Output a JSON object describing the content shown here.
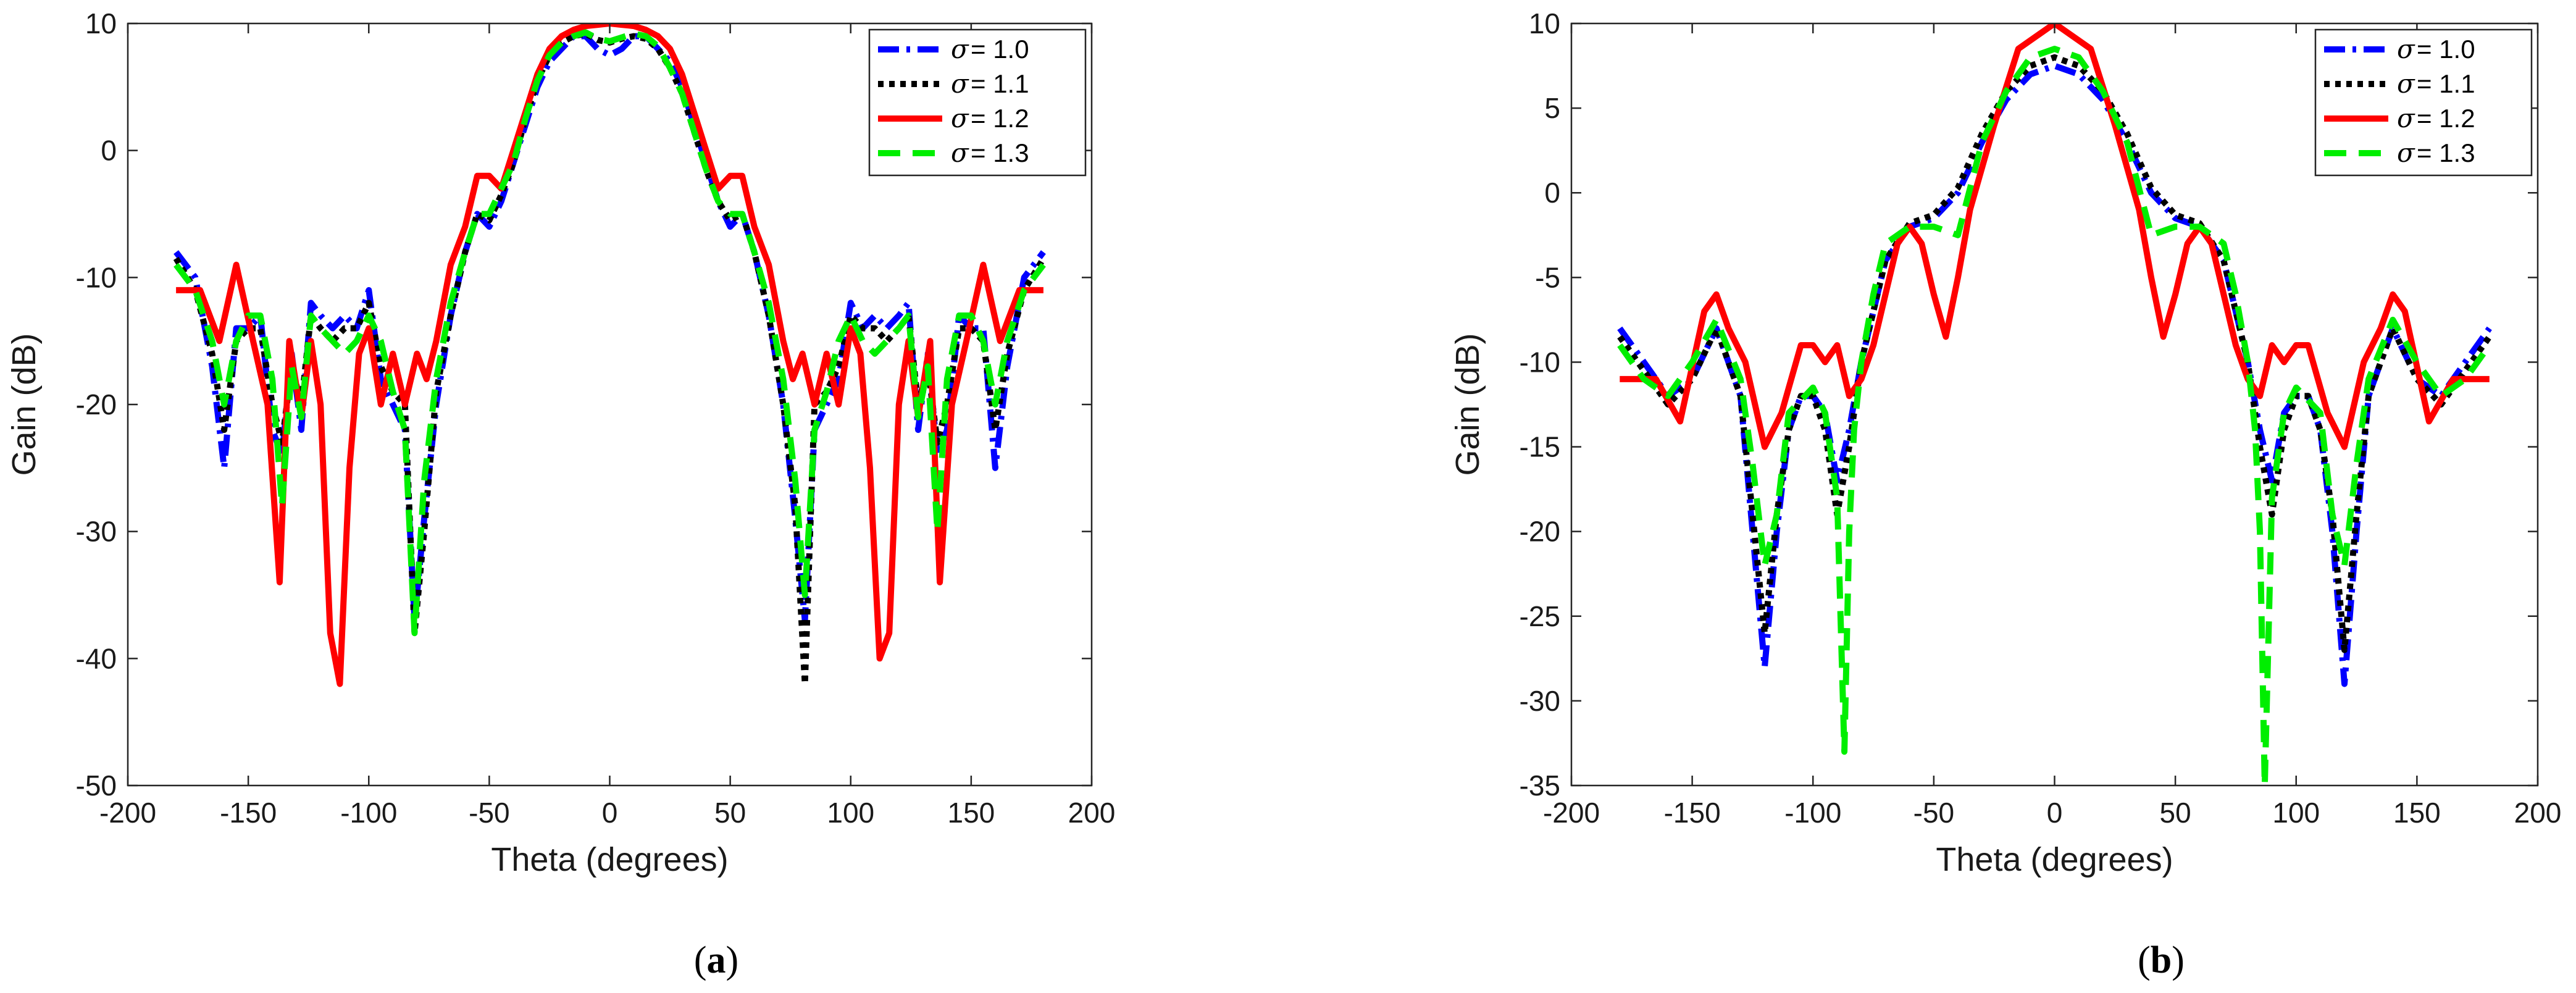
{
  "chart_data": [
    {
      "type": "line",
      "panel_label": "a",
      "xlabel": "Theta (degrees)",
      "ylabel": "Gain (dB)",
      "xlim": [
        -200,
        200
      ],
      "ylim": [
        -50,
        10
      ],
      "xticks": [
        -200,
        -150,
        -100,
        -50,
        0,
        50,
        100,
        150,
        200
      ],
      "yticks": [
        -50,
        -40,
        -30,
        -20,
        -10,
        0,
        10
      ],
      "grid": false,
      "legend_position": "top-right",
      "series": [
        {
          "name": "σ = 1.0",
          "legend_symbol": "σ",
          "legend_value": "= 1.0",
          "color": "#0000ff",
          "style": "dash-dot",
          "x": [
            -180,
            -172,
            -165,
            -160,
            -155,
            -150,
            -145,
            -140,
            -136,
            -132,
            -128,
            -124,
            -120,
            -115,
            -110,
            -105,
            -100,
            -95,
            -90,
            -85,
            -81,
            -77,
            -72,
            -66,
            -60,
            -55,
            -50,
            -45,
            -40,
            -35,
            -30,
            -25,
            -20,
            -15,
            -10,
            -5,
            0,
            5,
            10,
            15,
            20,
            25,
            30,
            35,
            40,
            45,
            50,
            55,
            60,
            66,
            72,
            77,
            81,
            85,
            90,
            95,
            100,
            105,
            110,
            115,
            120,
            124,
            128,
            132,
            136,
            140,
            145,
            150,
            155,
            160,
            165,
            172,
            180
          ],
          "y": [
            -8,
            -10,
            -17,
            -25,
            -14,
            -14,
            -13,
            -22,
            -24,
            -16,
            -22,
            -12,
            -13,
            -14,
            -13,
            -14,
            -11,
            -18,
            -20,
            -22,
            -37,
            -29,
            -20,
            -13,
            -8,
            -5,
            -6,
            -4,
            -1,
            2,
            5,
            7,
            8,
            9,
            9,
            8,
            7.5,
            8,
            9,
            9,
            8,
            7,
            5,
            2,
            -1,
            -4,
            -6,
            -5,
            -8,
            -13,
            -20,
            -29,
            -37,
            -22,
            -20,
            -18,
            -12,
            -14,
            -13,
            -14,
            -13,
            -12,
            -22,
            -16,
            -24,
            -22,
            -13,
            -14,
            -14,
            -25,
            -17,
            -10,
            -8
          ]
        },
        {
          "name": "σ = 1.1",
          "legend_symbol": "σ",
          "legend_value": "= 1.1",
          "color": "#000000",
          "style": "dotted",
          "x": [
            -180,
            -172,
            -165,
            -160,
            -155,
            -150,
            -145,
            -140,
            -136,
            -132,
            -128,
            -124,
            -120,
            -115,
            -110,
            -105,
            -100,
            -95,
            -90,
            -85,
            -81,
            -77,
            -72,
            -66,
            -60,
            -55,
            -50,
            -45,
            -40,
            -35,
            -30,
            -25,
            -20,
            -15,
            -10,
            -5,
            0,
            5,
            10,
            15,
            20,
            25,
            30,
            35,
            40,
            45,
            50,
            55,
            60,
            66,
            72,
            77,
            81,
            85,
            90,
            95,
            100,
            105,
            110,
            115,
            120,
            124,
            128,
            132,
            136,
            140,
            145,
            150,
            155,
            160,
            165,
            172,
            180
          ],
          "y": [
            -8.5,
            -11,
            -16,
            -22,
            -15,
            -14,
            -14,
            -20,
            -23,
            -17,
            -20,
            -13,
            -14,
            -15,
            -14,
            -14,
            -12,
            -17,
            -19,
            -20,
            -38,
            -30,
            -19,
            -13,
            -8,
            -5,
            -5.5,
            -3.5,
            -1,
            2.5,
            5.5,
            7.5,
            8.5,
            9,
            9.2,
            8.7,
            8.5,
            8.8,
            9,
            8.8,
            8,
            6.5,
            4.5,
            1.5,
            -1.5,
            -4,
            -5.5,
            -5,
            -8,
            -13,
            -20,
            -28,
            -42,
            -20,
            -19,
            -17,
            -13,
            -14,
            -14,
            -15,
            -14,
            -13,
            -20,
            -17,
            -23,
            -20,
            -14,
            -14,
            -15,
            -22,
            -16,
            -11,
            -8.5
          ]
        },
        {
          "name": "σ = 1.2",
          "legend_symbol": "σ",
          "legend_value": "= 1.2",
          "color": "#ff0000",
          "style": "solid",
          "x": [
            -180,
            -170,
            -162,
            -155,
            -148,
            -142,
            -137,
            -133,
            -128,
            -124,
            -120,
            -116,
            -112,
            -108,
            -104,
            -100,
            -95,
            -90,
            -85,
            -80,
            -76,
            -72,
            -66,
            -60,
            -55,
            -50,
            -45,
            -40,
            -35,
            -30,
            -25,
            -20,
            -15,
            -10,
            -5,
            0,
            5,
            10,
            15,
            20,
            25,
            30,
            35,
            40,
            45,
            50,
            55,
            60,
            66,
            72,
            76,
            80,
            85,
            90,
            95,
            100,
            104,
            108,
            112,
            116,
            120,
            124,
            128,
            133,
            137,
            142,
            148,
            155,
            162,
            170,
            180
          ],
          "y": [
            -11,
            -11,
            -15,
            -9,
            -15,
            -20,
            -34,
            -15,
            -21,
            -15,
            -20,
            -38,
            -42,
            -25,
            -16,
            -14,
            -20,
            -16,
            -20,
            -16,
            -18,
            -15,
            -9,
            -6,
            -2,
            -2,
            -3,
            0,
            3,
            6,
            8,
            9,
            9.5,
            9.8,
            9.9,
            10,
            9.9,
            9.8,
            9.5,
            9,
            8,
            6,
            3,
            0,
            -3,
            -2,
            -2,
            -6,
            -9,
            -15,
            -18,
            -16,
            -20,
            -16,
            -20,
            -14,
            -16,
            -25,
            -40,
            -38,
            -20,
            -15,
            -21,
            -15,
            -34,
            -20,
            -15,
            -9,
            -15,
            -11,
            -11
          ]
        },
        {
          "name": "σ = 1.3",
          "legend_symbol": "σ",
          "legend_value": "= 1.3",
          "color": "#00ee00",
          "style": "dashed",
          "x": [
            -180,
            -172,
            -165,
            -160,
            -155,
            -150,
            -145,
            -140,
            -136,
            -132,
            -128,
            -124,
            -120,
            -115,
            -110,
            -105,
            -100,
            -95,
            -90,
            -85,
            -81,
            -77,
            -72,
            -66,
            -60,
            -55,
            -50,
            -45,
            -40,
            -35,
            -30,
            -25,
            -20,
            -15,
            -10,
            -5,
            0,
            5,
            10,
            15,
            20,
            25,
            30,
            35,
            40,
            45,
            50,
            55,
            60,
            66,
            72,
            77,
            81,
            85,
            90,
            95,
            100,
            105,
            110,
            115,
            120,
            124,
            128,
            132,
            136,
            140,
            145,
            150,
            155,
            160,
            165,
            172,
            180
          ],
          "y": [
            -9,
            -11,
            -15,
            -20,
            -15,
            -13,
            -13,
            -18,
            -28,
            -17,
            -21,
            -13,
            -14,
            -15,
            -16,
            -15,
            -13,
            -15,
            -19,
            -22,
            -38,
            -26,
            -18,
            -12,
            -8,
            -5,
            -5,
            -3,
            -1,
            2.5,
            5.5,
            7.5,
            8.5,
            9,
            9.3,
            8.8,
            8.6,
            8.9,
            9.2,
            9,
            8.2,
            6.5,
            4.5,
            1.5,
            -1.5,
            -4,
            -5,
            -5,
            -8,
            -12,
            -18,
            -26,
            -35,
            -22,
            -19,
            -15,
            -13,
            -15,
            -16,
            -15,
            -14,
            -13,
            -21,
            -17,
            -30,
            -18,
            -13,
            -13,
            -15,
            -20,
            -15,
            -11,
            -9
          ]
        }
      ]
    },
    {
      "type": "line",
      "panel_label": "b",
      "xlabel": "Theta (degrees)",
      "ylabel": "Gain (dB)",
      "xlim": [
        -200,
        200
      ],
      "ylim": [
        -35,
        10
      ],
      "xticks": [
        -200,
        -150,
        -100,
        -50,
        0,
        50,
        100,
        150,
        200
      ],
      "yticks": [
        -35,
        -30,
        -25,
        -20,
        -15,
        -10,
        -5,
        0,
        5,
        10
      ],
      "grid": false,
      "legend_position": "top-right",
      "series": [
        {
          "name": "σ = 1.0",
          "legend_symbol": "σ",
          "legend_value": "= 1.0",
          "color": "#0000ff",
          "style": "dash-dot",
          "x": [
            -180,
            -170,
            -160,
            -150,
            -140,
            -130,
            -125,
            -120,
            -115,
            -110,
            -105,
            -100,
            -95,
            -90,
            -85,
            -80,
            -75,
            -70,
            -60,
            -50,
            -40,
            -30,
            -20,
            -10,
            0,
            10,
            20,
            30,
            40,
            50,
            60,
            70,
            75,
            80,
            85,
            90,
            95,
            100,
            105,
            110,
            115,
            120,
            125,
            130,
            140,
            150,
            160,
            170,
            180
          ],
          "y": [
            -8,
            -10,
            -12,
            -11,
            -8,
            -12,
            -20,
            -28,
            -20,
            -14,
            -12,
            -12,
            -13,
            -17,
            -14,
            -10,
            -7,
            -4,
            -2,
            -1.5,
            0,
            3,
            5.5,
            7,
            7.5,
            7,
            5.5,
            3,
            0,
            -1.5,
            -2,
            -4,
            -7,
            -10,
            -14,
            -17,
            -13,
            -12,
            -12,
            -14,
            -20,
            -29,
            -20,
            -12,
            -8,
            -11,
            -12,
            -10,
            -8
          ]
        },
        {
          "name": "σ = 1.1",
          "legend_symbol": "σ",
          "legend_value": "= 1.1",
          "color": "#000000",
          "style": "dotted",
          "x": [
            -180,
            -170,
            -160,
            -150,
            -140,
            -130,
            -125,
            -120,
            -115,
            -110,
            -105,
            -100,
            -95,
            -90,
            -85,
            -80,
            -75,
            -70,
            -60,
            -50,
            -40,
            -30,
            -20,
            -10,
            0,
            10,
            20,
            30,
            40,
            50,
            60,
            70,
            75,
            80,
            85,
            90,
            95,
            100,
            105,
            110,
            115,
            120,
            125,
            130,
            140,
            150,
            160,
            170,
            180
          ],
          "y": [
            -8.5,
            -10.5,
            -12.5,
            -11,
            -8,
            -12,
            -19,
            -26,
            -19,
            -14,
            -12,
            -12,
            -14,
            -19,
            -15,
            -10,
            -7,
            -4,
            -1.8,
            -1.3,
            0.3,
            3.5,
            6,
            7.5,
            8,
            7.5,
            6,
            3.5,
            0.3,
            -1.3,
            -1.8,
            -4,
            -7,
            -10,
            -15,
            -19,
            -14,
            -12,
            -12,
            -14,
            -19,
            -27,
            -19,
            -12,
            -8,
            -11,
            -12.5,
            -10.5,
            -8.5
          ]
        },
        {
          "name": "σ = 1.2",
          "legend_symbol": "σ",
          "legend_value": "= 1.2",
          "color": "#ff0000",
          "style": "solid",
          "x": [
            -180,
            -165,
            -155,
            -145,
            -140,
            -135,
            -128,
            -120,
            -113,
            -105,
            -100,
            -95,
            -90,
            -85,
            -80,
            -75,
            -70,
            -65,
            -60,
            -55,
            -50,
            -45,
            -40,
            -35,
            -25,
            -15,
            0,
            15,
            25,
            35,
            40,
            45,
            50,
            55,
            60,
            65,
            70,
            75,
            80,
            85,
            90,
            95,
            100,
            105,
            113,
            120,
            128,
            135,
            140,
            145,
            155,
            165,
            180
          ],
          "y": [
            -11,
            -11,
            -13.5,
            -7,
            -6,
            -8,
            -10,
            -15,
            -13,
            -9,
            -9,
            -10,
            -9,
            -12,
            -11,
            -9,
            -6,
            -3,
            -2,
            -3,
            -6,
            -8.5,
            -5,
            -1,
            4,
            8.5,
            10,
            8.5,
            4,
            -1,
            -5,
            -8.5,
            -6,
            -3,
            -2,
            -3,
            -6,
            -9,
            -11,
            -12,
            -9,
            -10,
            -9,
            -9,
            -13,
            -15,
            -10,
            -8,
            -6,
            -7,
            -13.5,
            -11,
            -11
          ]
        },
        {
          "name": "σ = 1.3",
          "legend_symbol": "σ",
          "legend_value": "= 1.3",
          "color": "#00ee00",
          "style": "dashed",
          "x": [
            -180,
            -170,
            -160,
            -150,
            -140,
            -130,
            -125,
            -120,
            -115,
            -110,
            -100,
            -95,
            -90,
            -87,
            -85,
            -83,
            -80,
            -75,
            -70,
            -60,
            -50,
            -40,
            -30,
            -20,
            -10,
            0,
            10,
            20,
            30,
            40,
            50,
            60,
            70,
            75,
            80,
            83,
            85,
            87,
            90,
            95,
            100,
            110,
            115,
            120,
            125,
            130,
            140,
            150,
            160,
            170,
            180
          ],
          "y": [
            -9,
            -11,
            -12,
            -10,
            -7.5,
            -11,
            -16,
            -22,
            -19,
            -13,
            -11.5,
            -13,
            -18,
            -33,
            -20,
            -14,
            -10,
            -6,
            -3,
            -2,
            -2,
            -2.5,
            3,
            6,
            8,
            8.5,
            8,
            6,
            3,
            -2.5,
            -2,
            -2,
            -3,
            -6,
            -10,
            -14,
            -20,
            -35,
            -18,
            -13,
            -11.5,
            -13,
            -19,
            -22,
            -16,
            -11,
            -7.5,
            -10,
            -12,
            -11,
            -9
          ]
        }
      ]
    }
  ]
}
